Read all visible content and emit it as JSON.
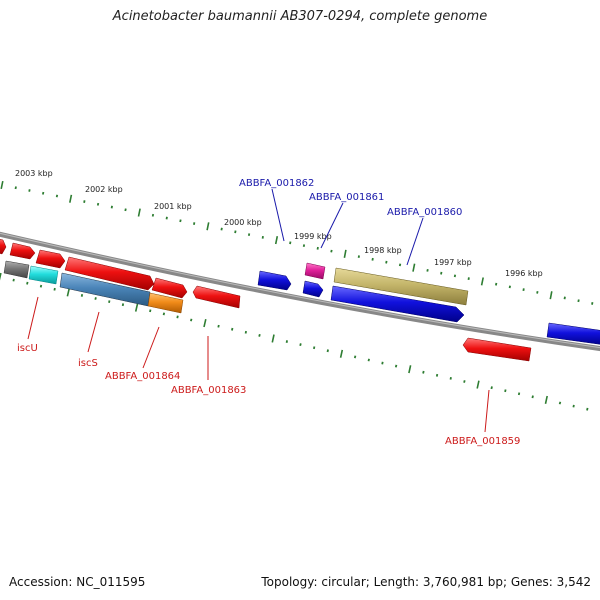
{
  "title": "Acinetobacter baumannii AB307-0294, complete genome",
  "footer": {
    "accession": "Accession: NC_011595",
    "summary": "Topology: circular; Length: 3,760,981 bp; Genes: 3,542"
  },
  "scale_labels": [
    "2003 kbp",
    "2002 kbp",
    "2001 kbp",
    "2000 kbp",
    "1999 kbp",
    "1998 kbp",
    "1997 kbp",
    "1996 kbp"
  ],
  "gene_labels": {
    "plus_strand": [
      "ABBFA_001862",
      "ABBFA_001861",
      "ABBFA_001860"
    ],
    "minus_strand": [
      "iscU",
      "iscS",
      "ABBFA_001864",
      "ABBFA_001863",
      "ABBFA_001859"
    ]
  },
  "colors": {
    "plus_label": "#1a1aaa",
    "minus_label": "#cc1a1a",
    "backbone": "#888888",
    "tick": "#2e7d32",
    "red_gene": "#ee1111",
    "blue_gene": "#1111dd",
    "magenta_gene": "#e0209a",
    "khaki_gene": "#c4b56a",
    "steelblue_gene": "#4a84b8",
    "orange_gene": "#f28c1a",
    "cyan_gene": "#22dddd",
    "gray_gene": "#777777"
  }
}
